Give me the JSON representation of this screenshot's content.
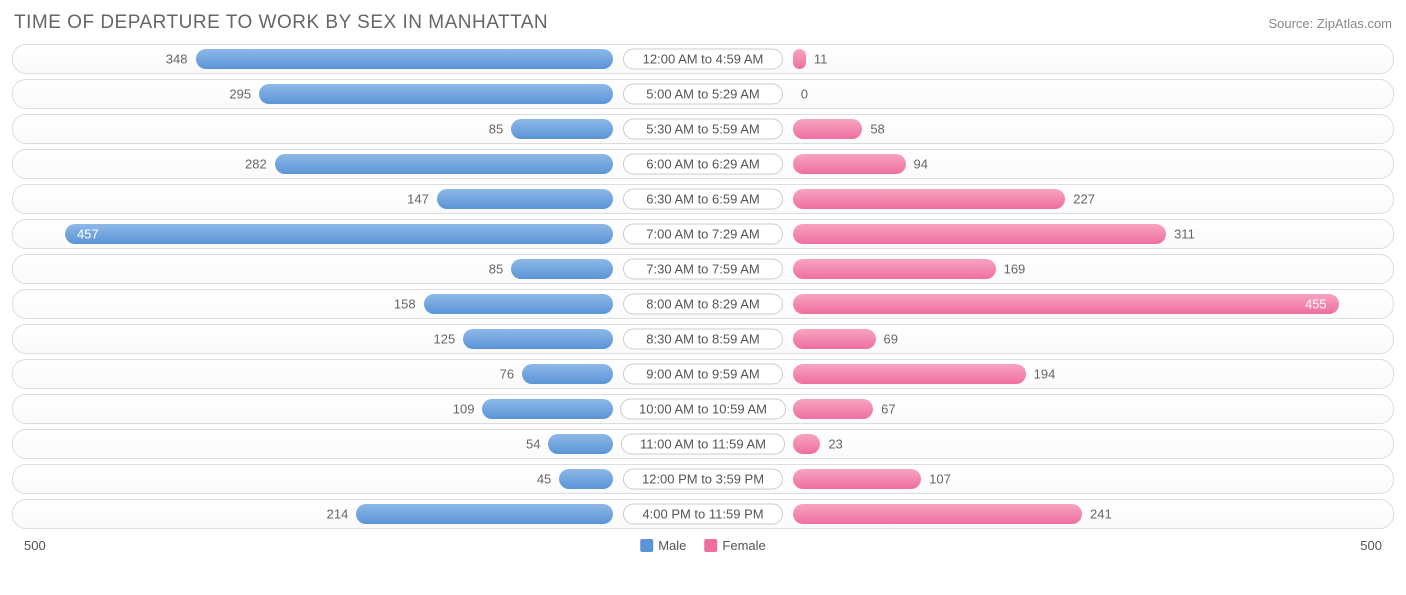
{
  "header": {
    "title": "TIME OF DEPARTURE TO WORK BY SEX IN MANHATTAN",
    "source_label": "Source: ZipAtlas.com"
  },
  "chart": {
    "type": "diverging-bar",
    "axis_max": 500,
    "axis_left_label": "500",
    "axis_right_label": "500",
    "bar_inside_threshold": 0.85,
    "colors": {
      "male_top": "#8db8e8",
      "male_bottom": "#5a94d6",
      "female_top": "#f7a4c0",
      "female_bottom": "#ef6ea0",
      "track_border": "#dddddd",
      "label_text": "#666666",
      "inside_text": "#ffffff",
      "title_text": "#666666",
      "source_text": "#888888"
    },
    "legend": {
      "male_label": "Male",
      "female_label": "Female",
      "male_swatch": "#5a94d6",
      "female_swatch": "#ef6ea0"
    },
    "rows": [
      {
        "label": "12:00 AM to 4:59 AM",
        "male": 348,
        "female": 11
      },
      {
        "label": "5:00 AM to 5:29 AM",
        "male": 295,
        "female": 0
      },
      {
        "label": "5:30 AM to 5:59 AM",
        "male": 85,
        "female": 58
      },
      {
        "label": "6:00 AM to 6:29 AM",
        "male": 282,
        "female": 94
      },
      {
        "label": "6:30 AM to 6:59 AM",
        "male": 147,
        "female": 227
      },
      {
        "label": "7:00 AM to 7:29 AM",
        "male": 457,
        "female": 311
      },
      {
        "label": "7:30 AM to 7:59 AM",
        "male": 85,
        "female": 169
      },
      {
        "label": "8:00 AM to 8:29 AM",
        "male": 158,
        "female": 455
      },
      {
        "label": "8:30 AM to 8:59 AM",
        "male": 125,
        "female": 69
      },
      {
        "label": "9:00 AM to 9:59 AM",
        "male": 76,
        "female": 194
      },
      {
        "label": "10:00 AM to 10:59 AM",
        "male": 109,
        "female": 67
      },
      {
        "label": "11:00 AM to 11:59 AM",
        "male": 54,
        "female": 23
      },
      {
        "label": "12:00 PM to 3:59 PM",
        "male": 45,
        "female": 107
      },
      {
        "label": "4:00 PM to 11:59 PM",
        "male": 214,
        "female": 241
      }
    ]
  }
}
